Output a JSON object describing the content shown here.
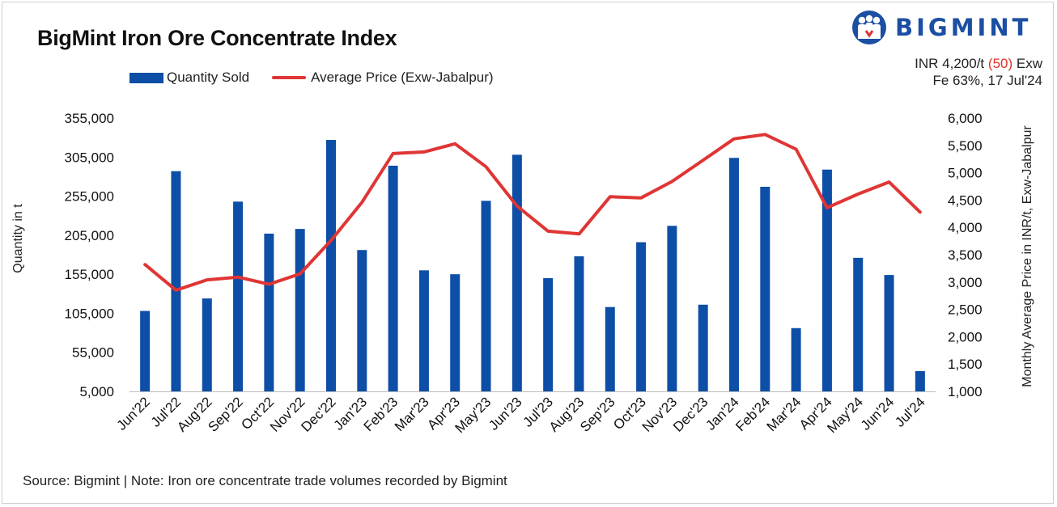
{
  "title": "BigMint Iron Ore Concentrate Index",
  "logo": {
    "text": "BIGMINT",
    "color": "#1b4fa3"
  },
  "info": {
    "line1_prefix": "INR 4,200/t",
    "line1_change": "(50)",
    "line1_suffix": "Exw",
    "line2": "Fe 63%, 17 Jul'24",
    "change_color": "#e0312b"
  },
  "source": "Source: Bigmint | Note: Iron ore concentrate trade volumes recorded by Bigmint",
  "colors": {
    "bar": "#0d4ea6",
    "line": "#e03535"
  },
  "chart_data": {
    "type": "bar",
    "title": "BigMint Iron Ore Concentrate Index",
    "categories": [
      "Jun'22",
      "Jul'22",
      "Aug'22",
      "Sep'22",
      "Oct'22",
      "Nov'22",
      "Dec'22",
      "Jan'23",
      "Feb'23",
      "Mar'23",
      "Apr'23",
      "May'23",
      "Jun'23",
      "Jul'23",
      "Aug'23",
      "Sep'23",
      "Oct'23",
      "Nov'23",
      "Dec'23",
      "Jan'24",
      "Feb'24",
      "Mar'24",
      "Apr'24",
      "May'24",
      "Jun'24",
      "Jul'24"
    ],
    "series": [
      {
        "name": "Quantity Sold",
        "type": "bar",
        "axis": "left",
        "values": [
          108000,
          287000,
          124000,
          248000,
          207000,
          213000,
          327000,
          186000,
          294000,
          160000,
          155000,
          249000,
          308000,
          150000,
          178000,
          113000,
          196000,
          217000,
          116000,
          304000,
          267000,
          86000,
          289000,
          176000,
          154000,
          31000
        ]
      },
      {
        "name": "Average Price (Exw-Jabalpur)",
        "type": "line",
        "axis": "right",
        "values": [
          3320,
          2850,
          3040,
          3090,
          2960,
          3150,
          3760,
          4460,
          5350,
          5380,
          5530,
          5110,
          4390,
          3930,
          3880,
          4560,
          4540,
          4840,
          5230,
          5620,
          5700,
          5430,
          4360,
          4610,
          4830,
          4280
        ]
      }
    ],
    "y_left": {
      "label": "Quantity in t",
      "ylim": [
        5000,
        355000
      ],
      "ticks": [
        "355,000",
        "305,000",
        "255,000",
        "205,000",
        "155,000",
        "105,000",
        "55,000",
        "5,000"
      ],
      "tick_values": [
        355000,
        305000,
        255000,
        205000,
        155000,
        105000,
        55000,
        5000
      ]
    },
    "y_right": {
      "label": "Monthly Average Price in INR/t, Exw-Jabalpur",
      "ylim": [
        1000,
        6000
      ],
      "ticks": [
        "6,000",
        "5,500",
        "5,000",
        "4,500",
        "4,000",
        "3,500",
        "3,000",
        "2,500",
        "2,000",
        "1,500",
        "1,000"
      ],
      "tick_values": [
        6000,
        5500,
        5000,
        4500,
        4000,
        3500,
        3000,
        2500,
        2000,
        1500,
        1000
      ]
    },
    "legend": [
      "Quantity Sold",
      "Average Price (Exw-Jabalpur)"
    ],
    "legend_position": "top-left",
    "grid": false
  }
}
